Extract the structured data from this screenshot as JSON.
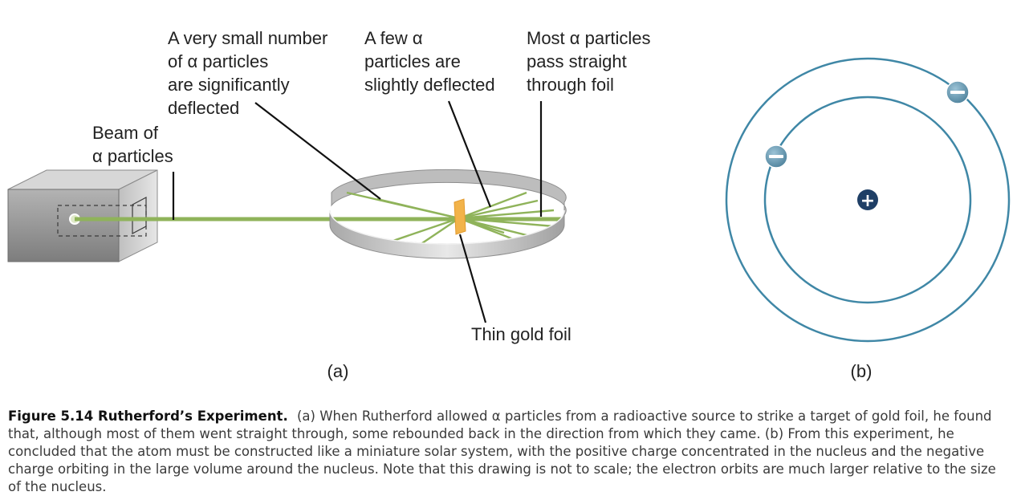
{
  "labels": {
    "significant_deflect": [
      "A very small number",
      "of α particles",
      "are significantly",
      "deflected"
    ],
    "slight_deflect": [
      "A few α",
      "particles are",
      "slightly deflected"
    ],
    "pass_through": [
      "Most α particles",
      "pass straight",
      "through foil"
    ],
    "beam": [
      "Beam of",
      "α particles"
    ],
    "gold_foil": "Thin gold foil",
    "panel_a": "(a)",
    "panel_b": "(b)",
    "nucleus_sign": "+",
    "electron_sign": "−"
  },
  "caption": {
    "title": "Figure 5.14 Rutherford’s Experiment.",
    "text": "(a) When Rutherford allowed α particles from a radioactive source to strike a target of gold foil, he found that, although most of them went straight through, some rebounded back in the direction from which they came. (b) From this experiment, he concluded that the atom must be constructed like a miniature solar system, with the positive charge concentrated in the nucleus and the negative charge orbiting in the large volume around the nucleus. Note that this drawing is not to scale; the electron orbits are much larger relative to the size of the nucleus."
  },
  "colors": {
    "beam": "#8fb35a",
    "orbit": "#3f87a6",
    "nucleus": "#1f3f66",
    "electron": "#5f93ad",
    "foil": "#f2b34a",
    "ring": "#c9c9c9",
    "box": "#9a9a9a"
  }
}
